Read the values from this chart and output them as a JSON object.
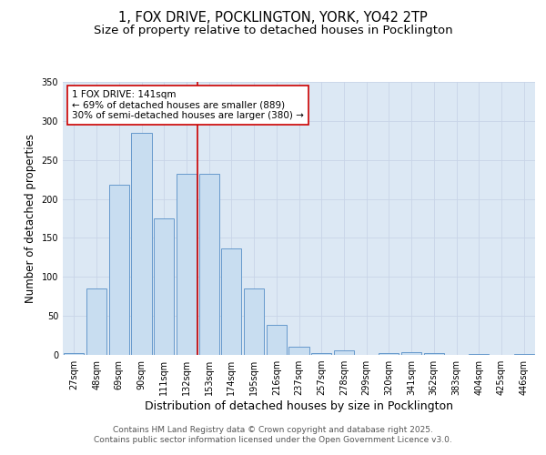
{
  "title_line1": "1, FOX DRIVE, POCKLINGTON, YORK, YO42 2TP",
  "title_line2": "Size of property relative to detached houses in Pocklington",
  "xlabel": "Distribution of detached houses by size in Pocklington",
  "ylabel": "Number of detached properties",
  "categories": [
    "27sqm",
    "48sqm",
    "69sqm",
    "90sqm",
    "111sqm",
    "132sqm",
    "153sqm",
    "174sqm",
    "195sqm",
    "216sqm",
    "237sqm",
    "257sqm",
    "278sqm",
    "299sqm",
    "320sqm",
    "341sqm",
    "362sqm",
    "383sqm",
    "404sqm",
    "425sqm",
    "446sqm"
  ],
  "values": [
    2,
    85,
    218,
    285,
    175,
    232,
    232,
    137,
    85,
    38,
    10,
    2,
    6,
    0,
    2,
    3,
    2,
    0,
    1,
    0,
    1
  ],
  "bar_color": "#c8ddf0",
  "bar_edge_color": "#6699cc",
  "bar_edge_width": 0.7,
  "grid_color": "#c8d4e8",
  "background_color": "#dce8f4",
  "ylim": [
    0,
    350
  ],
  "yticks": [
    0,
    50,
    100,
    150,
    200,
    250,
    300,
    350
  ],
  "red_line_x": 5.5,
  "red_line_color": "#cc0000",
  "annotation_text_line1": "1 FOX DRIVE: 141sqm",
  "annotation_text_line2": "← 69% of detached houses are smaller (889)",
  "annotation_text_line3": "30% of semi-detached houses are larger (380) →",
  "annotation_box_color": "white",
  "annotation_border_color": "#cc0000",
  "footer_line1": "Contains HM Land Registry data © Crown copyright and database right 2025.",
  "footer_line2": "Contains public sector information licensed under the Open Government Licence v3.0.",
  "title_fontsize": 10.5,
  "subtitle_fontsize": 9.5,
  "ylabel_fontsize": 8.5,
  "xlabel_fontsize": 9,
  "tick_fontsize": 7,
  "annotation_fontsize": 7.5,
  "footer_fontsize": 6.5
}
